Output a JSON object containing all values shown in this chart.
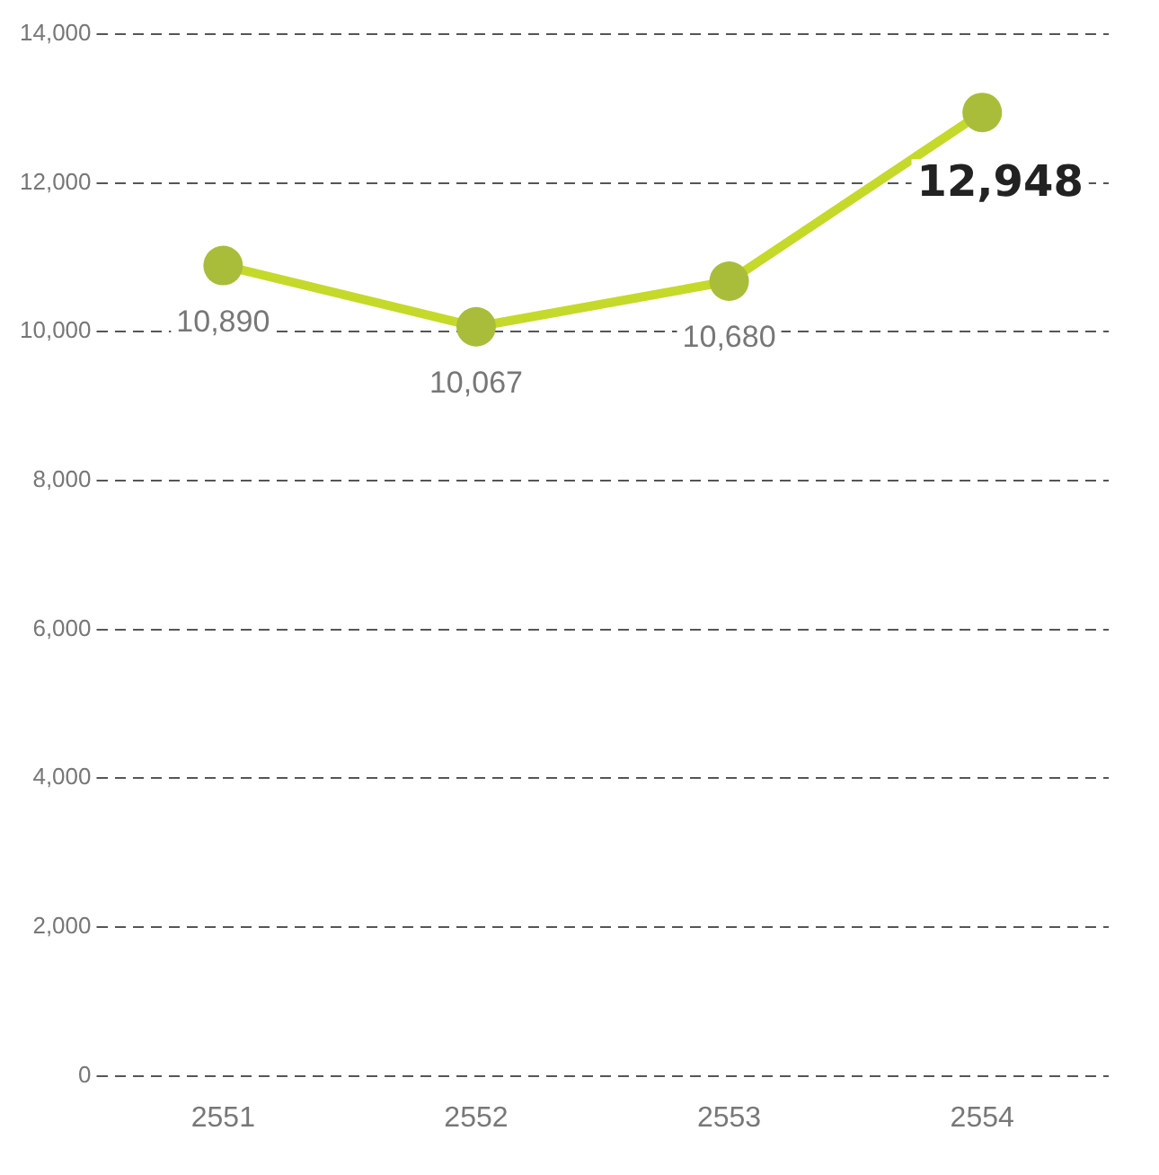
{
  "chart_data": {
    "type": "line",
    "categories": [
      "2551",
      "2552",
      "2553",
      "2554"
    ],
    "series": [
      {
        "color": "#c5d92b",
        "values": [
          10890,
          10067,
          10680,
          12948
        ],
        "value_labels": [
          "10,890",
          "10,067",
          "10,680",
          "12,948"
        ]
      }
    ],
    "ylim": [
      0,
      14000
    ],
    "yticks": [
      0,
      {
        "value": 2000,
        "label": "2,000"
      },
      {
        "value": 4000,
        "label": "4,000"
      },
      {
        "value": 6000,
        "label": "6,000"
      },
      {
        "value": 8000,
        "label": "8,000"
      },
      {
        "value": 10000,
        "label": "10,000"
      },
      {
        "value": 12000,
        "label": "12,000"
      },
      {
        "value": 14000,
        "label": "14,000"
      }
    ],
    "grid": "y",
    "marker": "circle",
    "line_style": "solid"
  }
}
